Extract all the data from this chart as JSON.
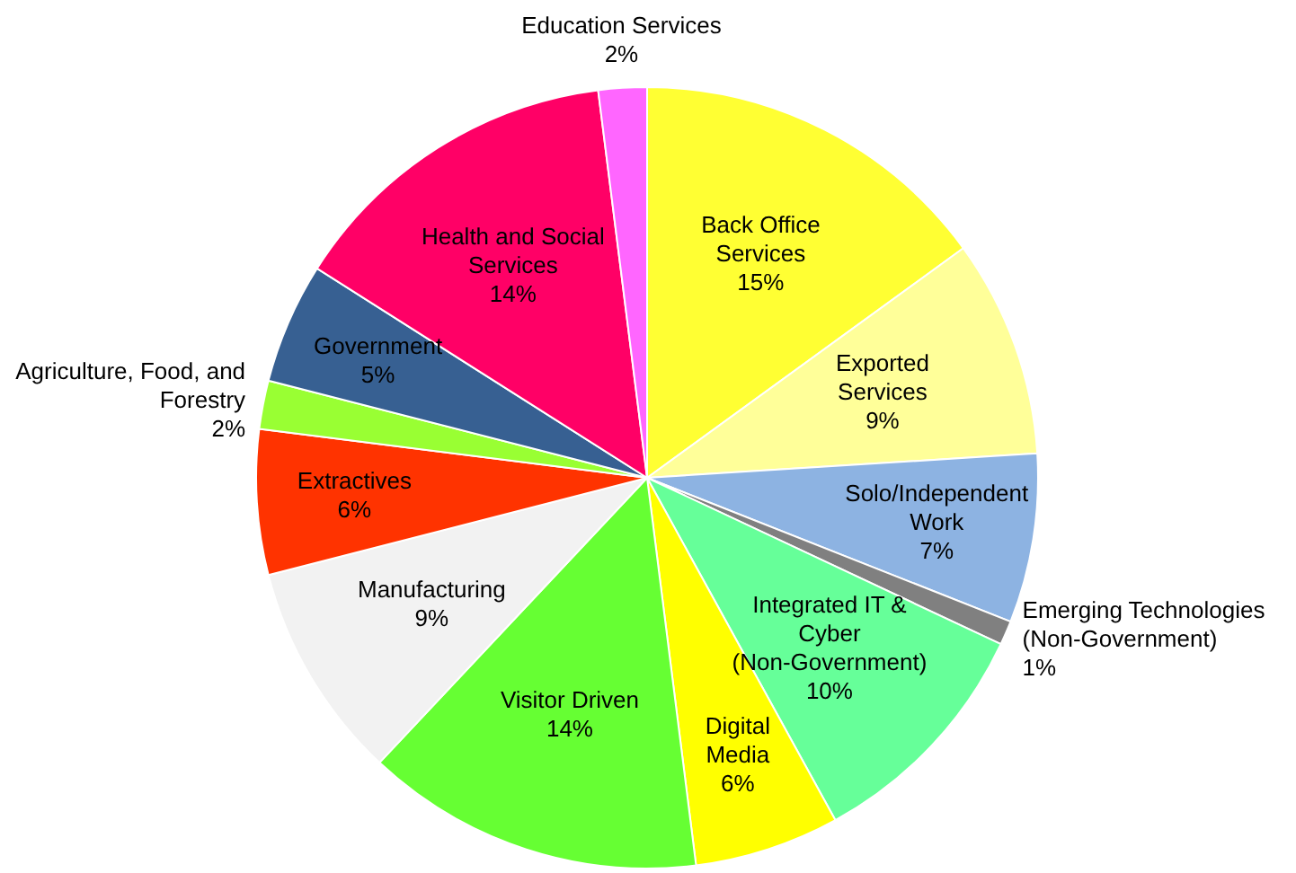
{
  "chart_data": {
    "type": "pie",
    "categories": [
      "Back Office Services",
      "Exported Services",
      "Solo/Independent Work",
      "Emerging Technologies (Non-Government)",
      "Integrated IT & Cyber (Non-Government)",
      "Digital Media",
      "Visitor Driven",
      "Manufacturing",
      "Extractives",
      "Agriculture, Food, and Forestry",
      "Government",
      "Health and Social Services",
      "Education Services"
    ],
    "values": [
      15,
      9,
      7,
      1,
      10,
      6,
      14,
      9,
      6,
      2,
      5,
      14,
      2
    ],
    "value_labels": [
      "15%",
      "9%",
      "7%",
      "1%",
      "10%",
      "6%",
      "14%",
      "9%",
      "6%",
      "2%",
      "5%",
      "14%",
      "2%"
    ],
    "colors": [
      "#ffff33",
      "#ffff99",
      "#8db3e2",
      "#808080",
      "#66ff99",
      "#ffff00",
      "#66ff33",
      "#f2f2f2",
      "#ff3300",
      "#99ff33",
      "#376092",
      "#ff0066",
      "#ff66ff"
    ],
    "legend": false
  }
}
